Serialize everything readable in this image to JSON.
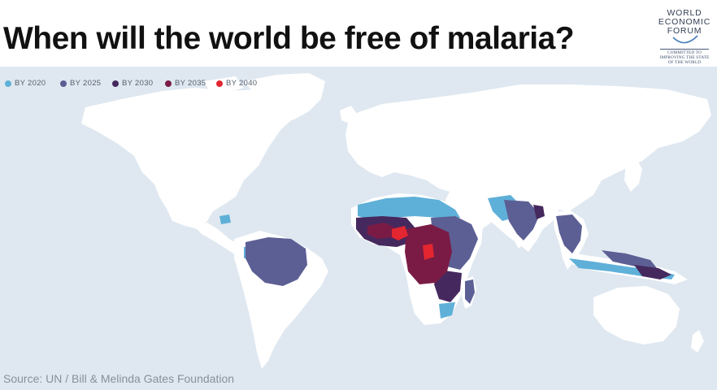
{
  "title": "When will the world be free of malaria?",
  "source": "Source: UN / Bill & Melinda Gates Foundation",
  "logo": {
    "line1": "WORLD",
    "line2": "ECONOMIC",
    "line3": "FORUM",
    "tagline1": "COMMITTED TO",
    "tagline2": "IMPROVING THE STATE",
    "tagline3": "OF THE WORLD"
  },
  "legend": [
    {
      "label": "BY 2020",
      "color": "#5fb0d8"
    },
    {
      "label": "BY 2025",
      "color": "#5c5f94"
    },
    {
      "label": "BY 2030",
      "color": "#45295e"
    },
    {
      "label": "BY 2035",
      "color": "#7a1b45"
    },
    {
      "label": "BY 2040",
      "color": "#e3262f"
    }
  ],
  "colors": {
    "ocean": "#dfe8f0",
    "land": "#ffffff",
    "by2020": "#5fb0d8",
    "by2025": "#5c5f94",
    "by2030": "#45295e",
    "by2035": "#7a1b45",
    "by2040": "#e3262f"
  }
}
